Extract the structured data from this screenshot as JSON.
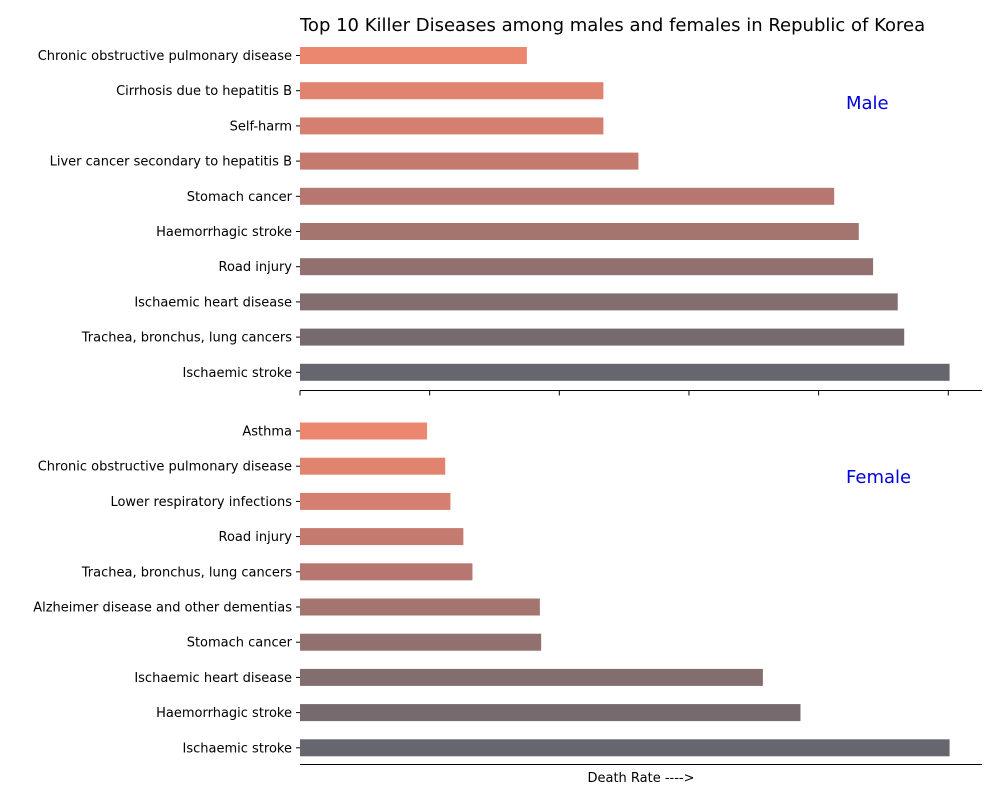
{
  "chart_data": {
    "type": "bar",
    "orientation": "horizontal",
    "title": "Top 10 Killer Diseases among males and females in Republic of Korea",
    "xlabel": "Death Rate ---->",
    "label_color": "#0000dd",
    "colors": [
      "#eb876f",
      "#e08470",
      "#d47f70",
      "#c57a6f",
      "#b5776f",
      "#a4756f",
      "#927070",
      "#836d6e",
      "#766a6f",
      "#66666f"
    ],
    "xlim": [
      0,
      52.6
    ],
    "panels": [
      {
        "label": "Male",
        "categories": [
          "Chronic obstructive pulmonary disease",
          "Cirrhosis due to hepatitis B",
          "Self-harm",
          "Liver cancer secondary to hepatitis B",
          "Stomach cancer",
          "Haemorrhagic stroke",
          "Road injury",
          "Ischaemic heart disease",
          "Trachea, bronchus, lung cancers",
          "Ischaemic stroke"
        ],
        "values": [
          17.5,
          23.4,
          23.4,
          26.1,
          41.2,
          43.1,
          44.2,
          46.1,
          46.6,
          50.1
        ]
      },
      {
        "label": "Female",
        "categories": [
          "Asthma",
          "Chronic obstructive pulmonary disease",
          "Lower respiratory infections",
          "Road injury",
          "Trachea, bronchus, lung cancers",
          "Alzheimer disease and other dementias",
          "Stomach cancer",
          "Ischaemic heart disease",
          "Haemorrhagic stroke",
          "Ischaemic stroke"
        ],
        "values": [
          9.8,
          11.2,
          11.6,
          12.6,
          13.3,
          18.5,
          18.6,
          35.7,
          38.6,
          50.1
        ]
      }
    ]
  }
}
